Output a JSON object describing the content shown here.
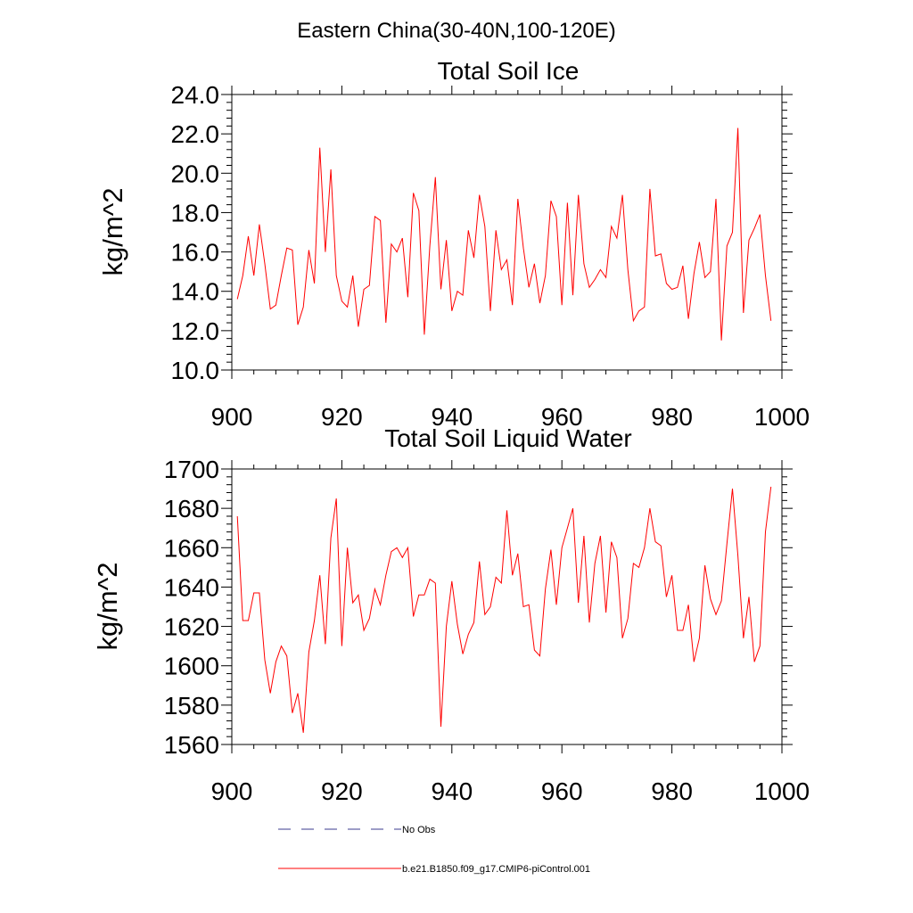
{
  "figure": {
    "title": "Eastern China(30-40N,100-120E)"
  },
  "colors": {
    "series": "#ff0000",
    "obs": "#3b3b8f",
    "axis": "#000000"
  },
  "legend": [
    {
      "label": "No Obs",
      "style": "dashed",
      "color": "#3b3b8f"
    },
    {
      "label": "b.e21.B1850.f09_g17.CMIP6-piControl.001",
      "style": "solid",
      "color": "#ff0000"
    }
  ],
  "chart_data": [
    {
      "type": "line",
      "title": "Total Soil Ice",
      "xlabel": "",
      "ylabel": "kg/m^2",
      "xlim": [
        900,
        1000
      ],
      "ylim": [
        10,
        24
      ],
      "xticks": [
        900,
        920,
        940,
        960,
        980,
        1000
      ],
      "xtick_labels": [
        "900",
        "920",
        "940",
        "960",
        "980",
        "1000"
      ],
      "yticks": [
        10,
        12,
        14,
        16,
        18,
        20,
        22,
        24
      ],
      "ytick_labels": [
        "10.0",
        "12.0",
        "14.0",
        "16.0",
        "18.0",
        "20.0",
        "22.0",
        "24.0"
      ],
      "series": [
        {
          "name": "b.e21.B1850.f09_g17.CMIP6-piControl.001",
          "x_start": 901,
          "values": [
            13.6,
            14.8,
            16.8,
            14.8,
            17.4,
            15.4,
            13.1,
            13.3,
            14.8,
            16.2,
            16.1,
            12.3,
            13.2,
            16.1,
            14.4,
            21.3,
            16.0,
            20.2,
            14.8,
            13.5,
            13.2,
            14.8,
            12.2,
            14.1,
            14.3,
            17.8,
            17.6,
            12.4,
            16.4,
            16.0,
            16.7,
            13.7,
            19.0,
            18.1,
            11.8,
            16.3,
            19.8,
            14.1,
            16.6,
            13.0,
            14.0,
            13.8,
            17.1,
            15.7,
            18.9,
            17.3,
            13.0,
            17.1,
            15.1,
            15.6,
            13.3,
            18.7,
            16.2,
            14.2,
            15.4,
            13.4,
            14.8,
            18.6,
            17.8,
            13.3,
            18.5,
            13.8,
            18.9,
            15.4,
            14.2,
            14.6,
            15.1,
            14.7,
            17.3,
            16.7,
            18.9,
            15.1,
            12.5,
            13.0,
            13.2,
            19.2,
            15.8,
            15.9,
            14.4,
            14.1,
            14.2,
            15.3,
            12.6,
            14.9,
            16.5,
            14.7,
            15.0,
            18.7,
            11.5,
            16.3,
            17.0,
            22.3,
            12.9,
            16.6,
            17.2,
            17.9,
            14.8,
            12.5
          ]
        }
      ]
    },
    {
      "type": "line",
      "title": "Total Soil Liquid Water",
      "xlabel": "",
      "ylabel": "kg/m^2",
      "xlim": [
        900,
        1000
      ],
      "ylim": [
        1560,
        1700
      ],
      "xticks": [
        900,
        920,
        940,
        960,
        980,
        1000
      ],
      "xtick_labels": [
        "900",
        "920",
        "940",
        "960",
        "980",
        "1000"
      ],
      "yticks": [
        1560,
        1580,
        1600,
        1620,
        1640,
        1660,
        1680,
        1700
      ],
      "ytick_labels": [
        "1560",
        "1580",
        "1600",
        "1620",
        "1640",
        "1660",
        "1680",
        "1700"
      ],
      "series": [
        {
          "name": "b.e21.B1850.f09_g17.CMIP6-piControl.001",
          "x_start": 901,
          "values": [
            1676,
            1623,
            1623,
            1637,
            1637,
            1603,
            1586,
            1602,
            1610,
            1605,
            1576,
            1586,
            1566,
            1607,
            1623,
            1646,
            1611,
            1665,
            1685,
            1610,
            1660,
            1632,
            1636,
            1618,
            1624,
            1639,
            1631,
            1646,
            1658,
            1660,
            1655,
            1660,
            1625,
            1636,
            1636,
            1644,
            1642,
            1569,
            1620,
            1643,
            1621,
            1606,
            1616,
            1622,
            1653,
            1626,
            1630,
            1645,
            1642,
            1679,
            1646,
            1657,
            1630,
            1631,
            1608,
            1605,
            1639,
            1659,
            1631,
            1660,
            1670,
            1680,
            1632,
            1666,
            1622,
            1652,
            1666,
            1627,
            1663,
            1655,
            1614,
            1624,
            1652,
            1650,
            1660,
            1680,
            1663,
            1661,
            1635,
            1646,
            1618,
            1618,
            1631,
            1602,
            1614,
            1651,
            1634,
            1626,
            1633,
            1662,
            1690,
            1656,
            1614,
            1635,
            1602,
            1610,
            1668,
            1691
          ]
        }
      ]
    }
  ]
}
